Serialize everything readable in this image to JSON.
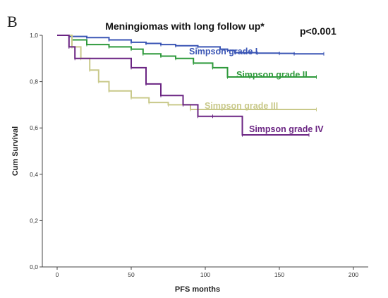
{
  "panel_letter": "B",
  "chart_data": {
    "type": "line",
    "title": "Meningiomas with long follow up*",
    "annotation": "p<0.001",
    "xlabel": "PFS months",
    "ylabel": "Cum Survival",
    "xlim": [
      -10,
      210
    ],
    "ylim": [
      0.0,
      1.0
    ],
    "x_ticks": [
      0,
      50,
      100,
      150,
      200
    ],
    "y_ticks": [
      0.0,
      0.2,
      0.4,
      0.6,
      0.8,
      1.0
    ],
    "y_tick_labels": [
      "0,0",
      "0,2",
      "0,4",
      "0,6",
      "0,8",
      "1,0"
    ],
    "grid": false,
    "step": true,
    "series": [
      {
        "name": "Simpson grade I",
        "color": "#3b56b5",
        "x": [
          0,
          8,
          20,
          35,
          50,
          60,
          70,
          80,
          95,
          110,
          115,
          120,
          135,
          150,
          160,
          180
        ],
        "y": [
          1.0,
          0.995,
          0.99,
          0.98,
          0.97,
          0.965,
          0.96,
          0.955,
          0.95,
          0.94,
          0.935,
          0.925,
          0.923,
          0.922,
          0.92,
          0.92
        ]
      },
      {
        "name": "Simpson grade II",
        "color": "#2f9a3c",
        "x": [
          0,
          10,
          20,
          35,
          50,
          58,
          70,
          80,
          92,
          105,
          115,
          130,
          175
        ],
        "y": [
          1.0,
          0.98,
          0.96,
          0.95,
          0.94,
          0.92,
          0.91,
          0.9,
          0.88,
          0.86,
          0.82,
          0.82,
          0.82
        ]
      },
      {
        "name": "Simpson grade III",
        "color": "#c9c98a",
        "x": [
          0,
          10,
          16,
          22,
          28,
          35,
          50,
          62,
          75,
          90,
          175
        ],
        "y": [
          1.0,
          0.95,
          0.9,
          0.85,
          0.8,
          0.76,
          0.73,
          0.71,
          0.7,
          0.68,
          0.68
        ]
      },
      {
        "name": "Simpson grade IV",
        "color": "#6b2583",
        "x": [
          0,
          8,
          12,
          50,
          60,
          70,
          85,
          95,
          105,
          125,
          170
        ],
        "y": [
          1.0,
          0.95,
          0.9,
          0.86,
          0.79,
          0.74,
          0.7,
          0.65,
          0.65,
          0.57,
          0.57
        ]
      }
    ]
  }
}
